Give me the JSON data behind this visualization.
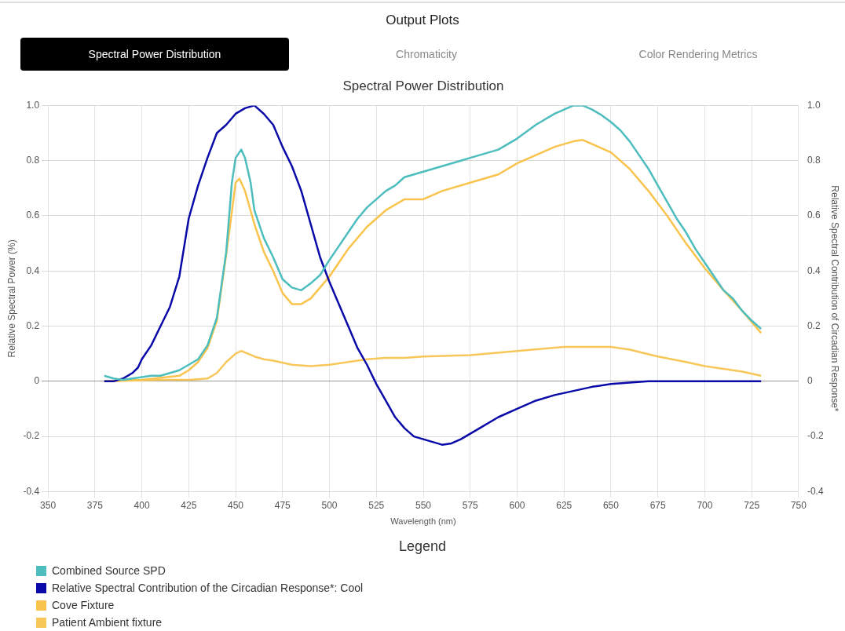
{
  "chart_data": {
    "type": "line",
    "title": "Spectral Power Distribution",
    "annotations": [
      "Output Plots",
      "Spectral Power Distribution",
      "Chromaticity",
      "Color Rendering Metrics"
    ],
    "xlabel": "Wavelength (nm)",
    "ylabel": "Relative Spectral Power (%)",
    "y2label": "Relative Spectral Contribution of Circadian Response*",
    "legend_title": "Legend",
    "xlim": [
      350,
      750
    ],
    "xticks": [
      350,
      375,
      400,
      425,
      450,
      475,
      500,
      525,
      550,
      575,
      600,
      625,
      650,
      675,
      700,
      725,
      750
    ],
    "ylim": [
      -0.4,
      1.0
    ],
    "yticks": [
      -0.4,
      -0.2,
      0,
      0.2,
      0.4,
      0.6,
      0.8,
      {
        "value": 1.0,
        "label": "1.0"
      }
    ],
    "y2lim": [
      -0.4,
      1.0
    ],
    "y2ticks": [
      -0.4,
      -0.2,
      0,
      0.2,
      0.4,
      0.6,
      0.8,
      {
        "value": 1.0,
        "label": "1.0"
      }
    ],
    "grid": true,
    "legend": "bottom",
    "marker": "none",
    "line_style": "solid",
    "series": [
      {
        "name": "Combined Source SPD",
        "color": "#4dbdbd",
        "x": [
          380,
          385,
          390,
          395,
          400,
          405,
          410,
          415,
          420,
          425,
          430,
          435,
          440,
          445,
          448,
          450,
          453,
          455,
          458,
          460,
          465,
          470,
          475,
          480,
          485,
          490,
          495,
          500,
          505,
          510,
          515,
          520,
          525,
          530,
          535,
          540,
          545,
          550,
          555,
          560,
          570,
          575,
          580,
          590,
          600,
          610,
          620,
          630,
          635,
          640,
          645,
          650,
          655,
          660,
          665,
          670,
          675,
          680,
          685,
          690,
          695,
          700,
          705,
          710,
          715,
          720,
          725,
          730
        ],
        "values": [
          0.02,
          0.01,
          0.005,
          0.01,
          0.015,
          0.02,
          0.02,
          0.03,
          0.04,
          0.06,
          0.08,
          0.13,
          0.23,
          0.47,
          0.72,
          0.81,
          0.84,
          0.81,
          0.72,
          0.62,
          0.52,
          0.45,
          0.37,
          0.34,
          0.33,
          0.355,
          0.385,
          0.44,
          0.49,
          0.54,
          0.59,
          0.63,
          0.66,
          0.69,
          0.71,
          0.74,
          0.75,
          0.76,
          0.77,
          0.78,
          0.8,
          0.81,
          0.82,
          0.84,
          0.88,
          0.93,
          0.97,
          1.0,
          1.0,
          0.985,
          0.965,
          0.94,
          0.91,
          0.87,
          0.82,
          0.77,
          0.71,
          0.65,
          0.59,
          0.54,
          0.48,
          0.43,
          0.38,
          0.33,
          0.3,
          0.255,
          0.22,
          0.19
        ]
      },
      {
        "name": "Relative Spectral Contribution of the Circadian Response*: Cool",
        "color": "#0a0aa8",
        "x": [
          380,
          385,
          390,
          395,
          398,
          400,
          405,
          410,
          415,
          420,
          425,
          430,
          435,
          440,
          445,
          450,
          455,
          460,
          465,
          470,
          475,
          480,
          485,
          490,
          495,
          500,
          505,
          510,
          515,
          520,
          525,
          530,
          535,
          540,
          545,
          550,
          555,
          560,
          565,
          570,
          575,
          580,
          590,
          600,
          610,
          620,
          630,
          640,
          650,
          660,
          670,
          680,
          690,
          700,
          710,
          720,
          730
        ],
        "values": [
          0,
          0,
          0.01,
          0.03,
          0.05,
          0.08,
          0.13,
          0.2,
          0.27,
          0.38,
          0.59,
          0.71,
          0.81,
          0.9,
          0.93,
          0.97,
          0.99,
          1.0,
          0.97,
          0.93,
          0.85,
          0.78,
          0.69,
          0.57,
          0.45,
          0.36,
          0.28,
          0.2,
          0.12,
          0.06,
          -0.01,
          -0.07,
          -0.13,
          -0.17,
          -0.2,
          -0.21,
          -0.22,
          -0.23,
          -0.225,
          -0.21,
          -0.19,
          -0.17,
          -0.13,
          -0.1,
          -0.07,
          -0.05,
          -0.035,
          -0.02,
          -0.01,
          -0.005,
          0,
          0,
          0,
          0,
          0,
          0,
          0
        ]
      },
      {
        "name": "Cove Fixture",
        "color": "#f9c44d",
        "x": [
          380,
          400,
          420,
          425,
          430,
          435,
          440,
          445,
          450,
          452,
          455,
          460,
          465,
          470,
          475,
          480,
          485,
          490,
          495,
          500,
          505,
          510,
          520,
          530,
          540,
          550,
          560,
          575,
          590,
          600,
          610,
          620,
          630,
          635,
          640,
          650,
          660,
          670,
          680,
          690,
          700,
          710,
          720,
          730
        ],
        "values": [
          0,
          0.005,
          0.02,
          0.04,
          0.07,
          0.12,
          0.22,
          0.46,
          0.72,
          0.735,
          0.69,
          0.57,
          0.47,
          0.4,
          0.32,
          0.28,
          0.28,
          0.3,
          0.34,
          0.38,
          0.43,
          0.48,
          0.56,
          0.62,
          0.66,
          0.66,
          0.69,
          0.72,
          0.75,
          0.79,
          0.82,
          0.85,
          0.87,
          0.875,
          0.86,
          0.83,
          0.77,
          0.69,
          0.6,
          0.5,
          0.41,
          0.33,
          0.255,
          0.175
        ]
      },
      {
        "name": "Patient Ambient fixture",
        "color": "#f8c75a",
        "x": [
          380,
          410,
          425,
          435,
          440,
          445,
          450,
          453,
          460,
          465,
          470,
          480,
          490,
          500,
          510,
          520,
          530,
          540,
          550,
          575,
          600,
          625,
          640,
          650,
          660,
          675,
          690,
          700,
          710,
          720,
          730
        ],
        "values": [
          0,
          0.005,
          0.005,
          0.01,
          0.03,
          0.07,
          0.1,
          0.11,
          0.09,
          0.08,
          0.075,
          0.06,
          0.055,
          0.06,
          0.07,
          0.08,
          0.085,
          0.085,
          0.09,
          0.095,
          0.11,
          0.125,
          0.125,
          0.125,
          0.115,
          0.09,
          0.07,
          0.055,
          0.045,
          0.035,
          0.02
        ]
      }
    ]
  }
}
